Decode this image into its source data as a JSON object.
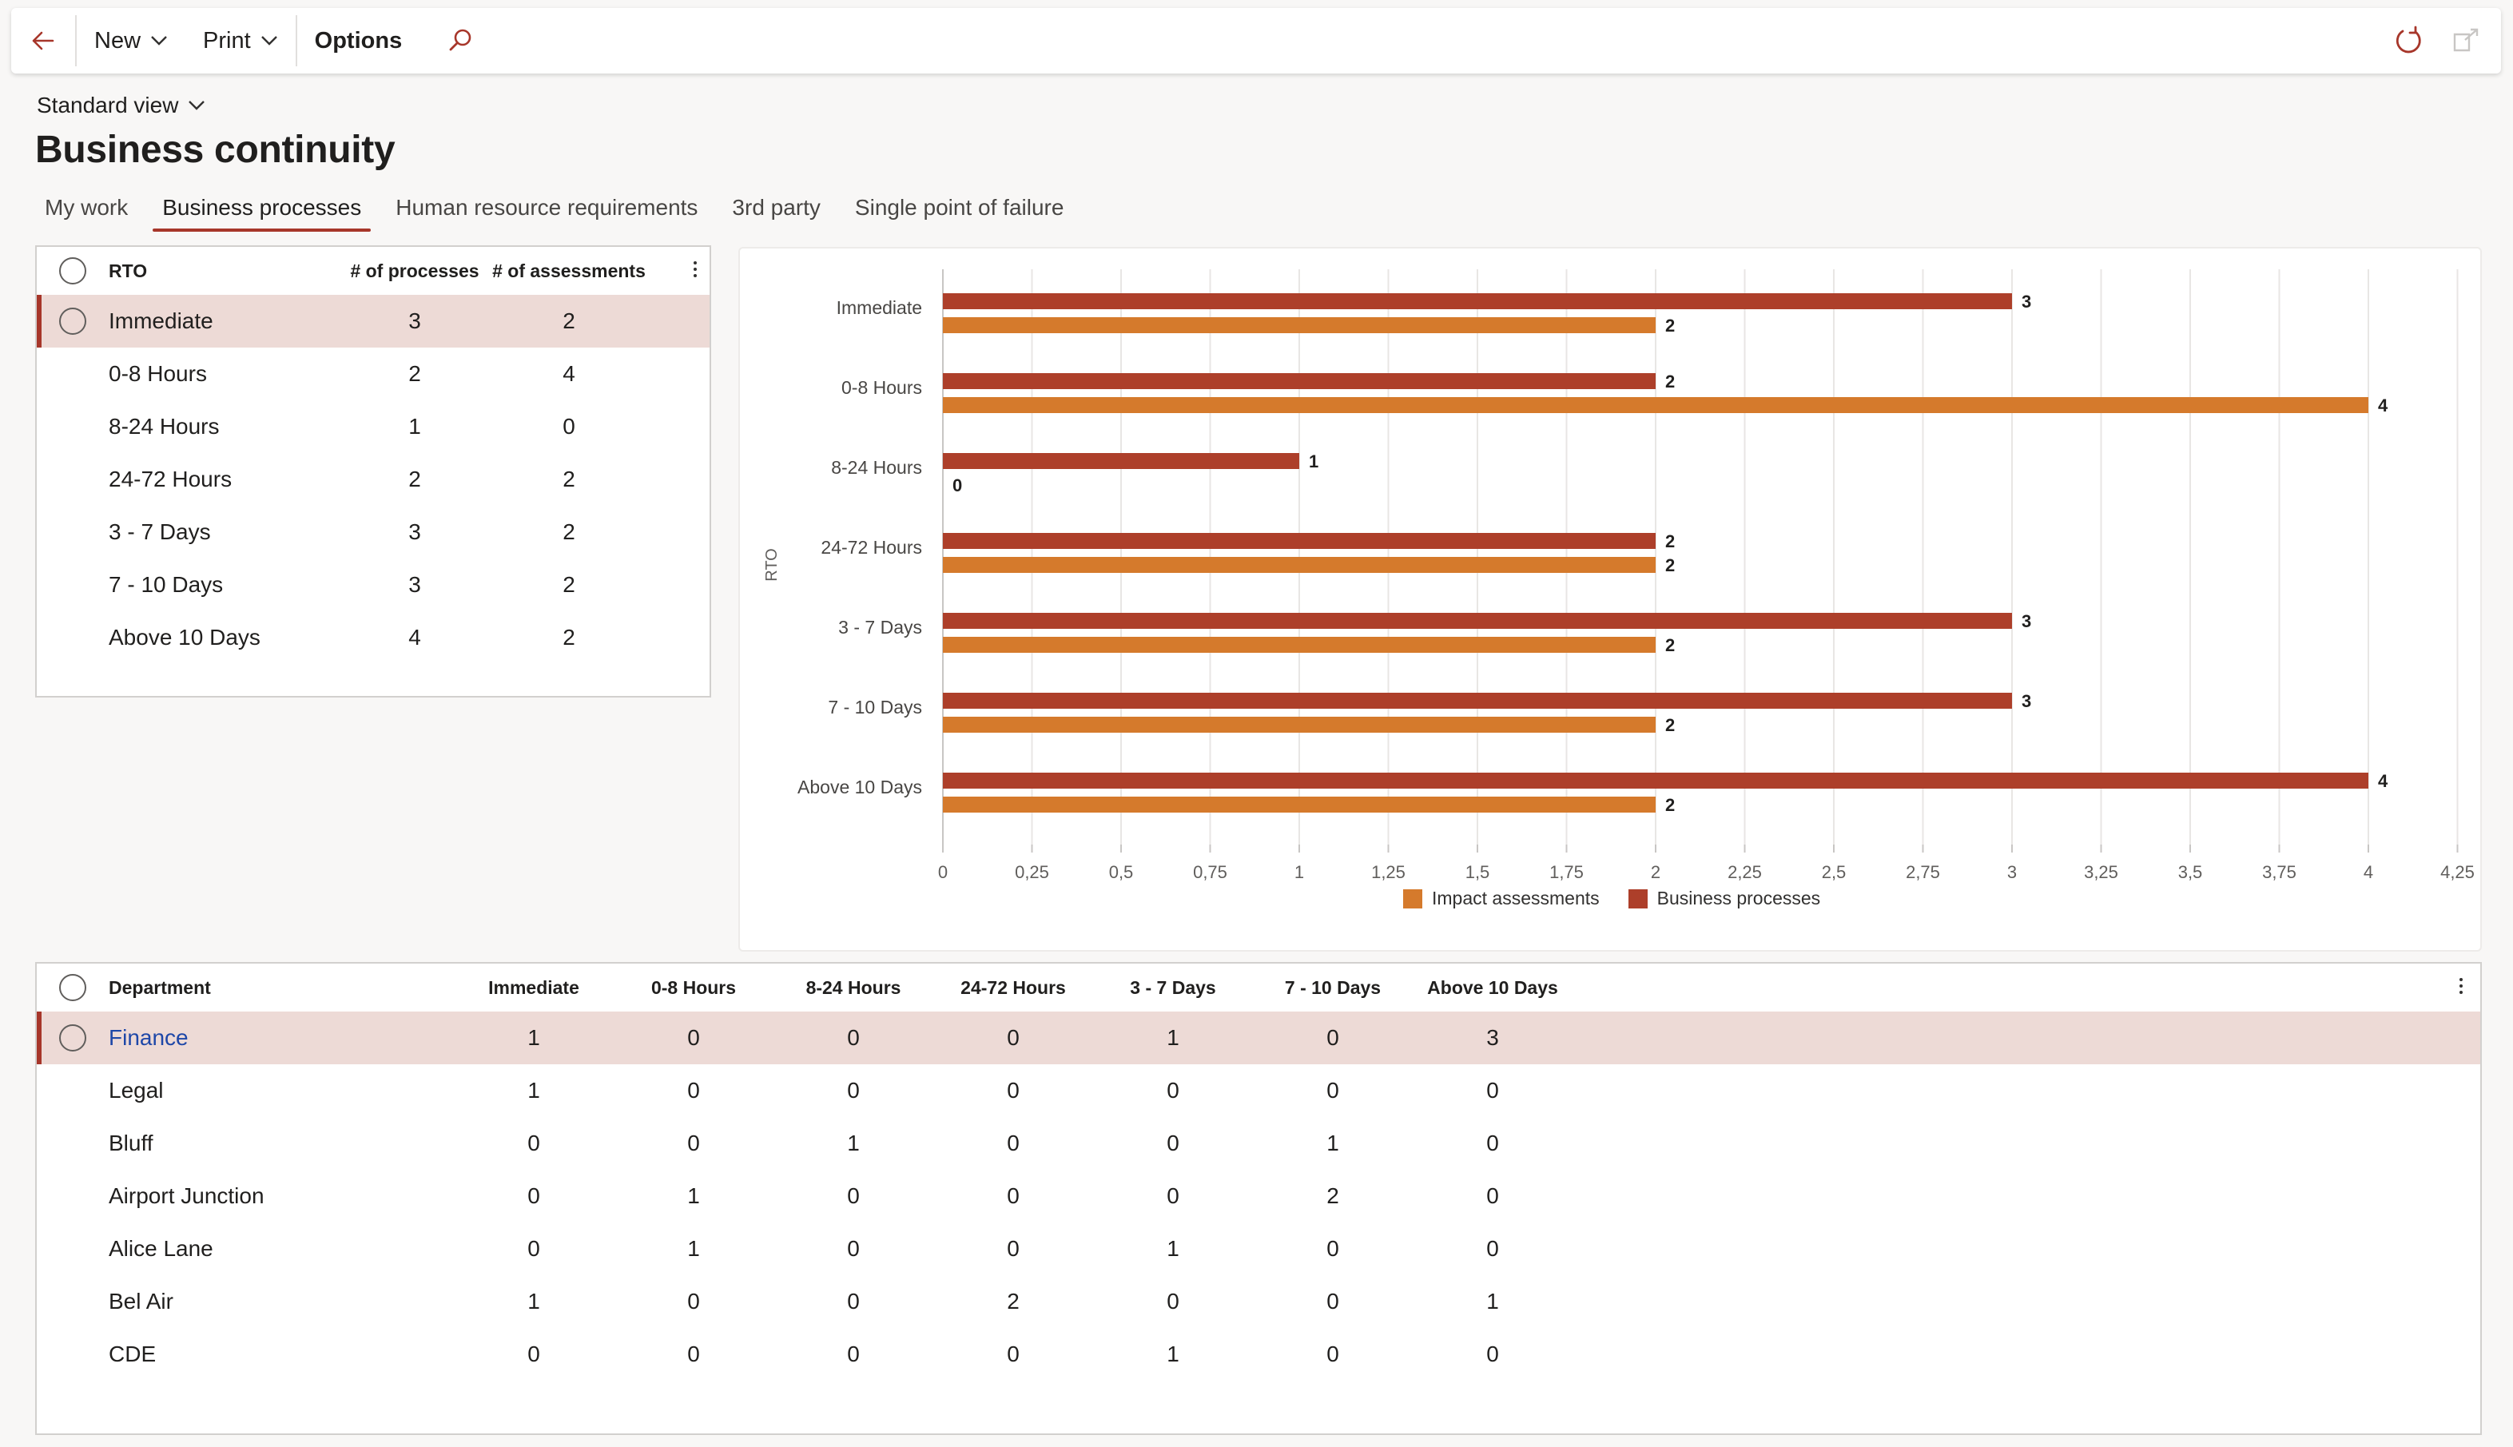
{
  "actionbar": {
    "new_label": "New",
    "print_label": "Print",
    "options_label": "Options"
  },
  "header": {
    "view": "Standard view",
    "title": "Business continuity"
  },
  "tabs": [
    {
      "label": "My work",
      "active": false
    },
    {
      "label": "Business processes",
      "active": true
    },
    {
      "label": "Human resource requirements",
      "active": false
    },
    {
      "label": "3rd party",
      "active": false
    },
    {
      "label": "Single point of failure",
      "active": false
    }
  ],
  "rto_grid": {
    "columns": [
      "RTO",
      "# of processes",
      "# of assessments"
    ],
    "rows": [
      {
        "rto": "Immediate",
        "processes": "3",
        "assessments": "2",
        "selected": true
      },
      {
        "rto": "0-8 Hours",
        "processes": "2",
        "assessments": "4"
      },
      {
        "rto": "8-24 Hours",
        "processes": "1",
        "assessments": "0"
      },
      {
        "rto": "24-72 Hours",
        "processes": "2",
        "assessments": "2"
      },
      {
        "rto": "3 - 7 Days",
        "processes": "3",
        "assessments": "2"
      },
      {
        "rto": "7 - 10 Days",
        "processes": "3",
        "assessments": "2"
      },
      {
        "rto": "Above 10 Days",
        "processes": "4",
        "assessments": "2"
      }
    ]
  },
  "chart_data": {
    "type": "bar",
    "orientation": "horizontal",
    "categories": [
      "Immediate",
      "0-8 Hours",
      "8-24 Hours",
      "24-72 Hours",
      "3 - 7 Days",
      "7 - 10 Days",
      "Above 10 Days"
    ],
    "series": [
      {
        "name": "Business processes",
        "color": "#ad3f2a",
        "values": [
          3,
          2,
          1,
          2,
          3,
          3,
          4
        ]
      },
      {
        "name": "Impact assessments",
        "color": "#d57a2c",
        "values": [
          2,
          4,
          0,
          2,
          2,
          2,
          2
        ]
      }
    ],
    "ylabel": "RTO",
    "xlim": [
      0,
      4.25
    ],
    "x_ticks": [
      "0",
      "0,25",
      "0,5",
      "0,75",
      "1",
      "1,25",
      "1,5",
      "1,75",
      "2",
      "2,25",
      "2,5",
      "2,75",
      "3",
      "3,25",
      "3,5",
      "3,75",
      "4",
      "4,25"
    ],
    "grid": true,
    "legend": [
      "Impact assessments",
      "Business processes"
    ],
    "legend_position": "bottom"
  },
  "dept_grid": {
    "columns": [
      "Department",
      "Immediate",
      "0-8 Hours",
      "8-24 Hours",
      "24-72 Hours",
      "3 - 7 Days",
      "7 - 10 Days",
      "Above 10 Days"
    ],
    "rows": [
      {
        "name": "Finance",
        "values": [
          "1",
          "0",
          "0",
          "0",
          "1",
          "0",
          "3"
        ],
        "selected": true
      },
      {
        "name": "Legal",
        "values": [
          "1",
          "0",
          "0",
          "0",
          "0",
          "0",
          "0"
        ]
      },
      {
        "name": "Bluff",
        "values": [
          "0",
          "0",
          "1",
          "0",
          "0",
          "1",
          "0"
        ]
      },
      {
        "name": "Airport Junction",
        "values": [
          "0",
          "1",
          "0",
          "0",
          "0",
          "2",
          "0"
        ]
      },
      {
        "name": "Alice Lane",
        "values": [
          "0",
          "1",
          "0",
          "0",
          "1",
          "0",
          "0"
        ]
      },
      {
        "name": "Bel Air",
        "values": [
          "1",
          "0",
          "0",
          "2",
          "0",
          "0",
          "1"
        ]
      },
      {
        "name": "CDE",
        "values": [
          "0",
          "0",
          "0",
          "0",
          "1",
          "0",
          "0"
        ]
      }
    ]
  },
  "icons": [
    "back-arrow-icon",
    "chevron-down-icon",
    "search-icon",
    "refresh-icon",
    "open-in-new-icon",
    "more-vertical-icon"
  ],
  "colors": {
    "accent": "#a7362a",
    "selected_row": "#eddad6",
    "link": "#1e47a8"
  }
}
